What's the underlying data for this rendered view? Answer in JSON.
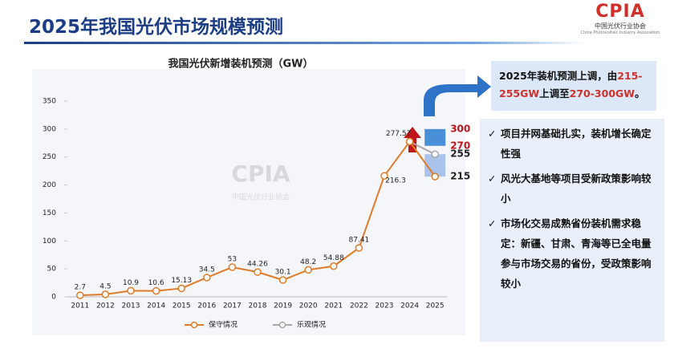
{
  "header": {
    "title": "2025年我国光伏市场规模预测",
    "logo": "CPIA",
    "logo_cn": "中国光伏行业协会",
    "logo_en": "China Photovoltaic Industry Association"
  },
  "callout": {
    "parts": [
      "2025年装机预测上调，由",
      "215-255GW",
      "上调至",
      "270-300GW",
      "。"
    ]
  },
  "bullets": [
    "项目并网基础扎实，装机增长确定性强",
    "风光大基地等项目受新政策影响较小",
    "市场化交易成熟省份装机需求稳定：新疆、甘肃、青海等已全电量参与市场交易的省份，受政策影响较小"
  ],
  "chart_data": {
    "type": "line",
    "title": "我国光伏新增装机预测（GW）",
    "categories": [
      "2011",
      "2012",
      "2013",
      "2014",
      "2015",
      "2016",
      "2017",
      "2018",
      "2019",
      "2020",
      "2021",
      "2022",
      "2023",
      "2024",
      "2025"
    ],
    "series": [
      {
        "name": "保守情况",
        "color": "#e07b28",
        "values": [
          2.7,
          4.5,
          10.9,
          10.6,
          15.13,
          34.5,
          53,
          44.26,
          30.1,
          48.2,
          54.88,
          87.41,
          216.3,
          277.57,
          215
        ]
      },
      {
        "name": "乐观情况",
        "color": "#a6a6a6",
        "values": [
          null,
          null,
          null,
          null,
          null,
          null,
          null,
          null,
          null,
          null,
          null,
          null,
          null,
          277.57,
          255
        ]
      }
    ],
    "range": {
      "low": 270,
      "high": 300,
      "color": "#4a90d9"
    },
    "old_range_color": "#a9c3ea",
    "ylim": [
      0,
      350
    ],
    "yticks": [
      0,
      50,
      100,
      150,
      200,
      250,
      300,
      350
    ],
    "grid": false,
    "legend": "bottom"
  }
}
